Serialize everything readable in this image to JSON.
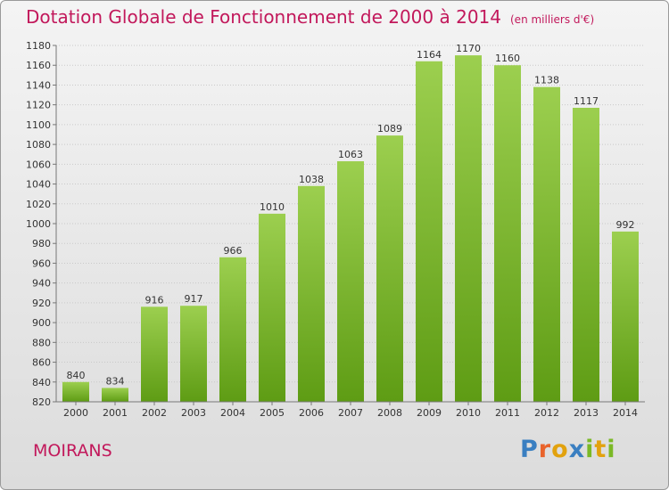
{
  "title": "Dotation Globale de Fonctionnement de 2000 à 2014",
  "subtitle": "(en milliers d'€)",
  "location": "MOIRANS",
  "logo": "Proxiti",
  "colors": {
    "accent": "#c2185b",
    "bar_top": "#9ccf4f",
    "bar_bottom": "#5e9c14"
  },
  "chart_data": {
    "type": "bar",
    "categories": [
      "2000",
      "2001",
      "2002",
      "2003",
      "2004",
      "2005",
      "2006",
      "2007",
      "2008",
      "2009",
      "2010",
      "2011",
      "2012",
      "2013",
      "2014"
    ],
    "values": [
      840,
      834,
      916,
      917,
      966,
      1010,
      1038,
      1063,
      1089,
      1164,
      1170,
      1160,
      1138,
      1117,
      992
    ],
    "title": "Dotation Globale de Fonctionnement de 2000 à 2014",
    "subtitle": "(en milliers d'€)",
    "xlabel": "",
    "ylabel": "",
    "ylim": [
      820,
      1180
    ],
    "yticks": [
      820,
      840,
      860,
      880,
      900,
      920,
      940,
      960,
      980,
      1000,
      1020,
      1040,
      1060,
      1080,
      1100,
      1120,
      1140,
      1160,
      1180
    ],
    "grid": true,
    "data_labels": true
  }
}
